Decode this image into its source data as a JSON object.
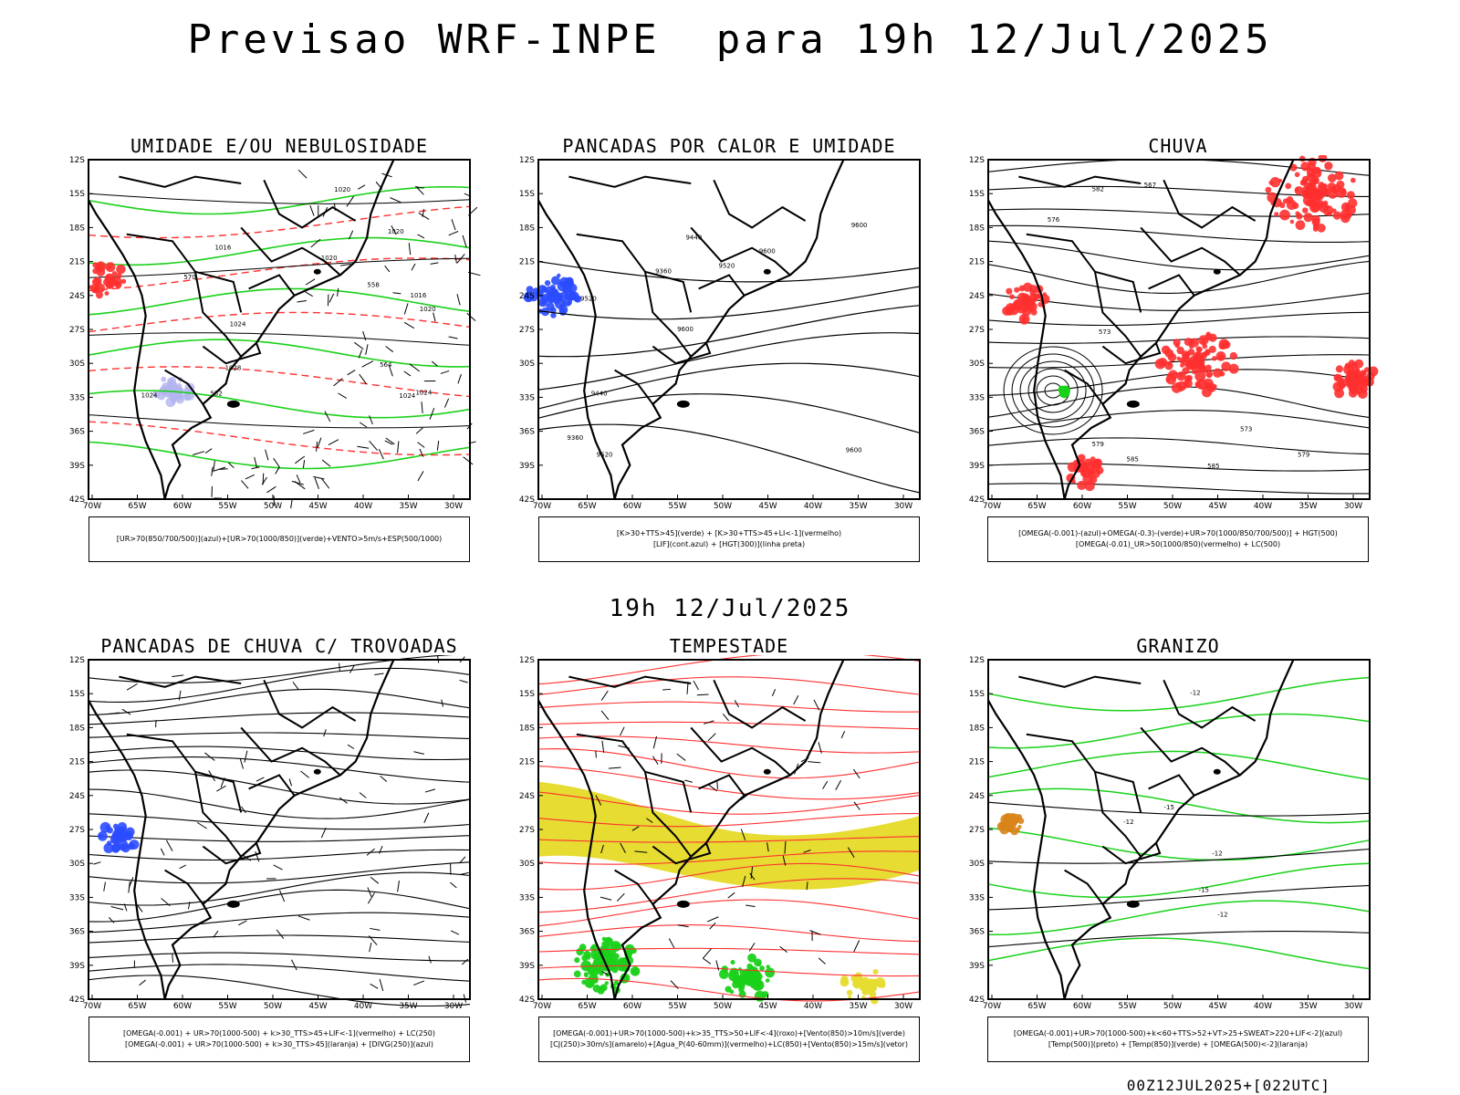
{
  "title": "Previsao WRF-INPE  para 19h 12/Jul/2025",
  "mid_title": "19h 12/Jul/2025",
  "footer": "00Z12JUL2025+[022UTC]",
  "axes": {
    "lat_ticks": [
      "12S",
      "15S",
      "18S",
      "21S",
      "24S",
      "27S",
      "30S",
      "33S",
      "36S",
      "39S",
      "42S"
    ],
    "lon_ticks": [
      "70W",
      "65W",
      "60W",
      "55W",
      "50W",
      "45W",
      "40W",
      "35W",
      "30W"
    ]
  },
  "panels": [
    {
      "title": "UMIDADE E/OU NEBULOSIDADE",
      "legend": [
        "[UR>70(850/700/500)](azul)+[UR>70(1000/850)](verde)+VENTO>5m/s+ESP(500/1000)"
      ],
      "contour_labels": [
        "1016",
        "1016",
        "1020",
        "1020",
        "1024",
        "1024",
        "1028",
        "1020",
        "1024",
        "1020",
        "570",
        "564",
        "558",
        "552",
        "1024"
      ]
    },
    {
      "title": "PANCADAS POR CALOR E UMIDADE",
      "legend": [
        "[K>30+TTS>45](verde)  +  [K>30+TTS>45+LI<-1](vermelho)",
        "[LIF](cont.azul)  +  [HGT(300)](linha preta)"
      ],
      "contour_labels": [
        "9600",
        "9520",
        "9600",
        "9600",
        "9600",
        "9520",
        "9440",
        "9520",
        "9440",
        "9360",
        "9360"
      ]
    },
    {
      "title": "CHUVA",
      "legend": [
        "[OMEGA(-0.001)-(azul)+OMEGA(-0.3)-(verde)+UR>70(1000/850/700/500)]  +  HGT(500)",
        "[OMEGA(-0.01)_UR>50(1000/850)(vermelho)  +  LC(500)"
      ],
      "contour_labels": [
        "585",
        "585",
        "579",
        "573",
        "582",
        "576",
        "573",
        "579",
        "567"
      ]
    },
    {
      "title": "PANCADAS DE CHUVA C/ TROVOADAS",
      "legend": [
        "[OMEGA(-0.001)  +  UR>70(1000-500)  +  k>30_TTS>45+LIF<-1](vermelho)  +  LC(250)",
        "[OMEGA(-0.001)  +  UR>70(1000-500)  +  k>30_TTS>45](laranja)  +  [DIVG(250)](azul)"
      ]
    },
    {
      "title": "TEMPESTADE",
      "legend": [
        "[OMEGA(-0.001)+UR>70(1000-500)+k>35_TTS>50+LIF<-4](roxo)+[Vento(850)>10m/s](verde)",
        "[CJ(250)>30m/s](amarelo)+[Agua_P(40-60mm)](vermelho)+LC(850)+[Vento(850)>15m/s](vetor)"
      ]
    },
    {
      "title": "GRANIZO",
      "legend": [
        "[OMEGA(-0.001)+UR>70(1000-500)+k<60+TTS>52+VT>25+SWEAT>220+LIF<-2](azul)",
        "[Temp(500)](preto)  +  [Temp(850)](verde)  +  [OMEGA(500)<-2](laranja)"
      ],
      "contour_labels": [
        "-12",
        "-15",
        "-12",
        "-15",
        "-12",
        "-12"
      ]
    }
  ],
  "colors": {
    "blue": "#2b4bff",
    "green": "#1ad11a",
    "red": "#ff3030",
    "lavender": "#b4b4f0",
    "yellow": "#e6dc32",
    "orange": "#d8841a"
  }
}
